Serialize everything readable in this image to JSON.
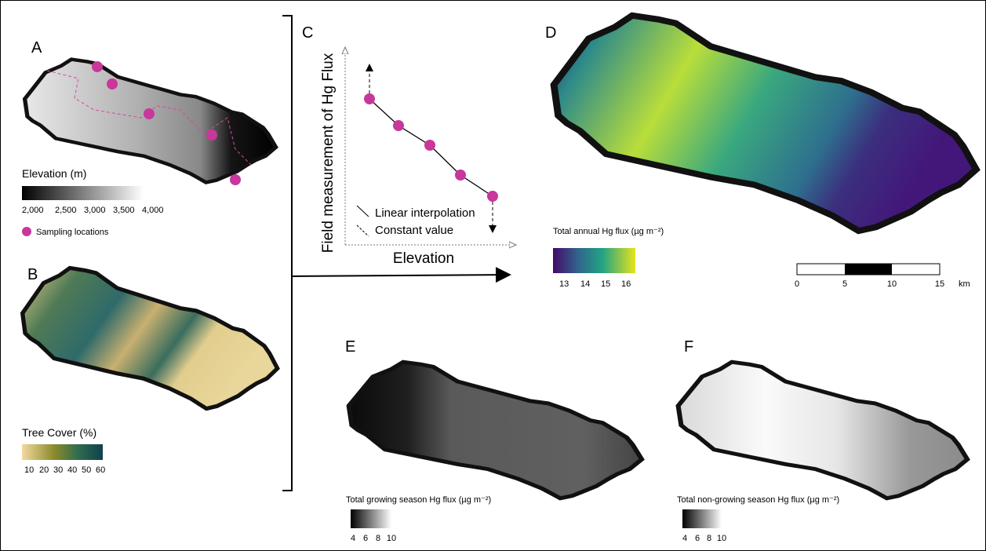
{
  "panels": {
    "a": {
      "label": "A",
      "legend_title": "Elevation (m)",
      "ticks": [
        "2,000",
        "2,500",
        "3,000",
        "3,500",
        "4,000"
      ],
      "points_legend": "Sampling locations"
    },
    "b": {
      "label": "B",
      "legend_title": "Tree Cover (%)",
      "ticks": [
        "10",
        "20",
        "30",
        "40",
        "50",
        "60"
      ]
    },
    "c": {
      "label": "C",
      "y_label": "Field measurement of Hg Flux",
      "x_label": "Elevation",
      "legend": [
        "Linear interpolation",
        "Constant value"
      ]
    },
    "d": {
      "label": "D",
      "legend_title": "Total annual Hg flux (µg m⁻²)",
      "ticks": [
        "13",
        "14",
        "15",
        "16"
      ],
      "scale_ticks": [
        "0",
        "5",
        "10",
        "15"
      ],
      "scale_unit": "km"
    },
    "e": {
      "label": "E",
      "legend_title": "Total growing season Hg flux (µg m⁻²)",
      "ticks": [
        "4",
        "6",
        "8",
        "10"
      ]
    },
    "f": {
      "label": "F",
      "legend_title": "Total non-growing season Hg flux (µg m⁻²)",
      "ticks": [
        "4",
        "6",
        "8",
        "10"
      ]
    }
  }
}
